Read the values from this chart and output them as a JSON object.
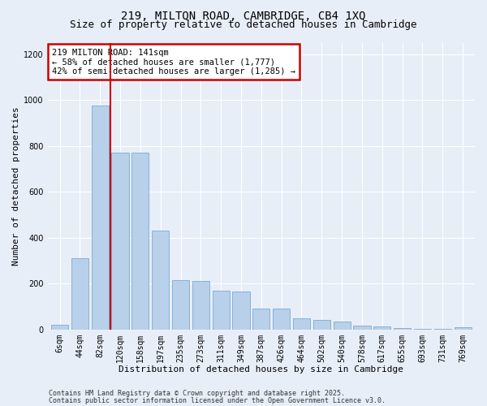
{
  "title1": "219, MILTON ROAD, CAMBRIDGE, CB4 1XQ",
  "title2": "Size of property relative to detached houses in Cambridge",
  "xlabel": "Distribution of detached houses by size in Cambridge",
  "ylabel": "Number of detached properties",
  "categories": [
    "6sqm",
    "44sqm",
    "82sqm",
    "120sqm",
    "158sqm",
    "197sqm",
    "235sqm",
    "273sqm",
    "311sqm",
    "349sqm",
    "387sqm",
    "426sqm",
    "464sqm",
    "502sqm",
    "540sqm",
    "578sqm",
    "617sqm",
    "655sqm",
    "693sqm",
    "731sqm",
    "769sqm"
  ],
  "values": [
    22,
    310,
    975,
    770,
    770,
    430,
    215,
    210,
    170,
    165,
    90,
    90,
    50,
    40,
    35,
    18,
    12,
    5,
    3,
    3,
    10
  ],
  "bar_color": "#b8d0ea",
  "bar_edge_color": "#7baad4",
  "vline_x": 2.5,
  "vline_color": "#cc0000",
  "annotation_text": "219 MILTON ROAD: 141sqm\n← 58% of detached houses are smaller (1,777)\n42% of semi-detached houses are larger (1,285) →",
  "annotation_box_color": "#ffffff",
  "annotation_box_edge": "#cc0000",
  "ylim": [
    0,
    1250
  ],
  "yticks": [
    0,
    200,
    400,
    600,
    800,
    1000,
    1200
  ],
  "footer1": "Contains HM Land Registry data © Crown copyright and database right 2025.",
  "footer2": "Contains public sector information licensed under the Open Government Licence v3.0.",
  "bg_color": "#e8eef8",
  "grid_color": "#ffffff",
  "title1_fontsize": 10,
  "title2_fontsize": 9,
  "axis_label_fontsize": 8,
  "tick_fontsize": 7,
  "annotation_fontsize": 7.5,
  "footer_fontsize": 6.0
}
